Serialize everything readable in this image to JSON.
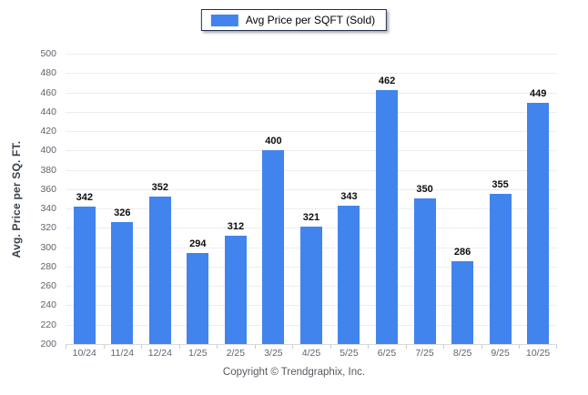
{
  "legend": {
    "label": "Avg Price per SQFT (Sold)",
    "swatch_color": "#4184ee"
  },
  "footer": {
    "copyright": "Copyright © Trendgraphix, Inc."
  },
  "chart_data": {
    "type": "bar",
    "title": "",
    "series_name": "Avg Price per SQFT (Sold)",
    "categories": [
      "10/24",
      "11/24",
      "12/24",
      "1/25",
      "2/25",
      "3/25",
      "4/25",
      "5/25",
      "6/25",
      "7/25",
      "8/25",
      "9/25",
      "10/25"
    ],
    "values": [
      342,
      326,
      352,
      294,
      312,
      400,
      321,
      343,
      462,
      350,
      286,
      355,
      449
    ],
    "xlabel": "",
    "ylabel": "Avg. Price per SQ. FT.",
    "ylim": [
      200,
      500
    ],
    "ytick_step": 20,
    "grid": true,
    "legend_position": "top-center",
    "bar_color": "#4184ee"
  }
}
